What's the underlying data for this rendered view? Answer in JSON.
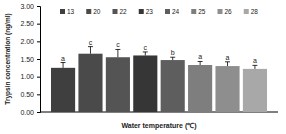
{
  "chart_data": {
    "type": "bar",
    "x_label": "Water temperature (℃)",
    "y_label": "Trypsin concentration (ng/ml)",
    "categories": [
      null
    ],
    "ylim": [
      0,
      3
    ],
    "yticks": [
      {
        "value": 0,
        "label": "0.00"
      },
      {
        "value": 0.5,
        "label": "0.50"
      },
      {
        "value": 1,
        "label": "1.00"
      },
      {
        "value": 1.5,
        "label": "1.50"
      },
      {
        "value": 2,
        "label": "2.00"
      },
      {
        "value": 2.5,
        "label": "2.50"
      },
      {
        "value": 3,
        "label": "3.00"
      }
    ],
    "legend": "top",
    "tick_labels": "y",
    "series": [
      {
        "name": "13",
        "color": "#3f3f3f",
        "values": [
          1.25
        ],
        "errors": [
          0.15
        ],
        "annotation": "a"
      },
      {
        "name": "20",
        "color": "#4a4a4a",
        "values": [
          1.65
        ],
        "errors": [
          0.2
        ],
        "annotation": "c"
      },
      {
        "name": "22",
        "color": "#545454",
        "values": [
          1.55
        ],
        "errors": [
          0.22
        ],
        "annotation": "c"
      },
      {
        "name": "23",
        "color": "#363636",
        "values": [
          1.6
        ],
        "errors": [
          0.1
        ],
        "annotation": "c"
      },
      {
        "name": "24",
        "color": "#5e5e5e",
        "values": [
          1.47
        ],
        "errors": [
          0.08
        ],
        "annotation": "b"
      },
      {
        "name": "25",
        "color": "#7e7e7e",
        "values": [
          1.33
        ],
        "errors": [
          0.1
        ],
        "annotation": "a"
      },
      {
        "name": "26",
        "color": "#8e8e8e",
        "values": [
          1.3
        ],
        "errors": [
          0.12
        ],
        "annotation": "a"
      },
      {
        "name": "28",
        "color": "#a8a8a8",
        "values": [
          1.22
        ],
        "errors": [
          0.1
        ],
        "annotation": "a"
      }
    ]
  }
}
